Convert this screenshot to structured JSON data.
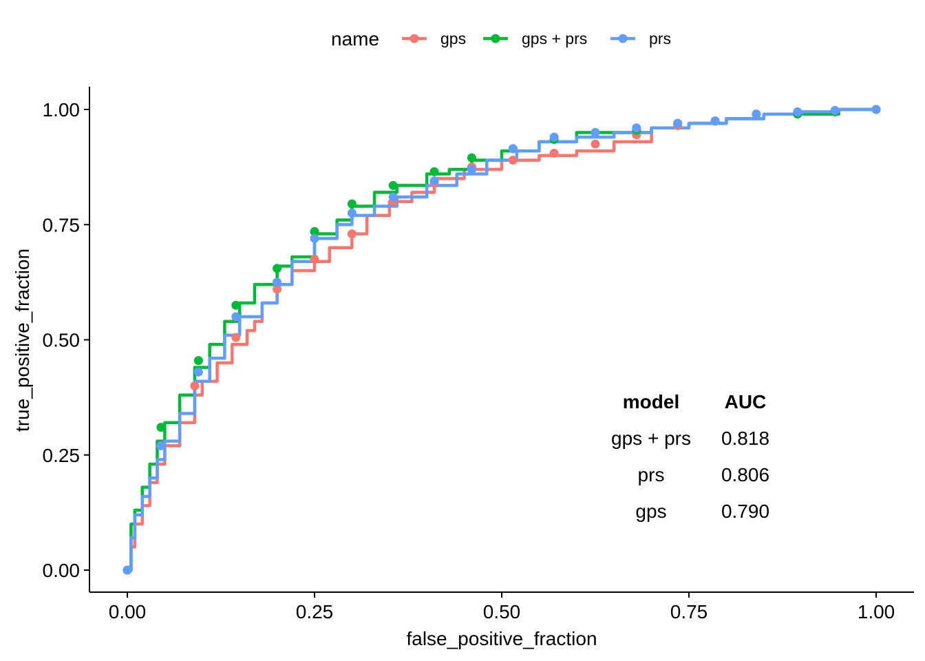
{
  "chart_data": {
    "type": "line",
    "xlabel": "false_positive_fraction",
    "ylabel": "true_positive_fraction",
    "xlim": [
      0,
      1
    ],
    "ylim": [
      0,
      1
    ],
    "x_ticks": [
      "0.00",
      "0.25",
      "0.50",
      "0.75",
      "1.00"
    ],
    "y_ticks": [
      "0.00",
      "0.25",
      "0.50",
      "0.75",
      "1.00"
    ],
    "grid": false,
    "legend": {
      "title": "name",
      "position": "top"
    },
    "series": [
      {
        "name": "gps",
        "color": "#F8766D",
        "line": [
          [
            0,
            0
          ],
          [
            0.005,
            0.05
          ],
          [
            0.01,
            0.1
          ],
          [
            0.02,
            0.14
          ],
          [
            0.03,
            0.19
          ],
          [
            0.04,
            0.23
          ],
          [
            0.05,
            0.27
          ],
          [
            0.07,
            0.32
          ],
          [
            0.09,
            0.38
          ],
          [
            0.1,
            0.41
          ],
          [
            0.12,
            0.45
          ],
          [
            0.14,
            0.49
          ],
          [
            0.16,
            0.52
          ],
          [
            0.17,
            0.54
          ],
          [
            0.18,
            0.58
          ],
          [
            0.2,
            0.62
          ],
          [
            0.22,
            0.65
          ],
          [
            0.25,
            0.67
          ],
          [
            0.27,
            0.7
          ],
          [
            0.3,
            0.73
          ],
          [
            0.32,
            0.77
          ],
          [
            0.35,
            0.8
          ],
          [
            0.38,
            0.82
          ],
          [
            0.41,
            0.85
          ],
          [
            0.45,
            0.87
          ],
          [
            0.5,
            0.89
          ],
          [
            0.55,
            0.9
          ],
          [
            0.6,
            0.91
          ],
          [
            0.65,
            0.93
          ],
          [
            0.7,
            0.96
          ],
          [
            0.75,
            0.97
          ],
          [
            0.8,
            0.98
          ],
          [
            0.85,
            0.99
          ],
          [
            0.9,
            0.99
          ],
          [
            0.95,
            1.0
          ],
          [
            1.0,
            1.0
          ]
        ],
        "points": [
          [
            0,
            0
          ],
          [
            0.045,
            0.27
          ],
          [
            0.09,
            0.4
          ],
          [
            0.145,
            0.505
          ],
          [
            0.2,
            0.61
          ],
          [
            0.25,
            0.675
          ],
          [
            0.3,
            0.73
          ],
          [
            0.355,
            0.8
          ],
          [
            0.41,
            0.84
          ],
          [
            0.46,
            0.875
          ],
          [
            0.515,
            0.89
          ],
          [
            0.57,
            0.905
          ],
          [
            0.625,
            0.925
          ],
          [
            0.68,
            0.945
          ],
          [
            0.735,
            0.965
          ],
          [
            0.785,
            0.975
          ],
          [
            0.84,
            0.99
          ],
          [
            0.895,
            0.99
          ],
          [
            0.945,
            0.995
          ],
          [
            1.0,
            1.0
          ]
        ]
      },
      {
        "name": "gps + prs",
        "color": "#00BA38",
        "line": [
          [
            0,
            0
          ],
          [
            0.005,
            0.1
          ],
          [
            0.01,
            0.13
          ],
          [
            0.02,
            0.18
          ],
          [
            0.03,
            0.23
          ],
          [
            0.04,
            0.28
          ],
          [
            0.05,
            0.32
          ],
          [
            0.07,
            0.38
          ],
          [
            0.09,
            0.44
          ],
          [
            0.11,
            0.49
          ],
          [
            0.13,
            0.54
          ],
          [
            0.15,
            0.58
          ],
          [
            0.17,
            0.62
          ],
          [
            0.2,
            0.66
          ],
          [
            0.22,
            0.68
          ],
          [
            0.25,
            0.73
          ],
          [
            0.28,
            0.76
          ],
          [
            0.3,
            0.79
          ],
          [
            0.33,
            0.82
          ],
          [
            0.36,
            0.835
          ],
          [
            0.4,
            0.86
          ],
          [
            0.43,
            0.87
          ],
          [
            0.46,
            0.89
          ],
          [
            0.5,
            0.91
          ],
          [
            0.55,
            0.93
          ],
          [
            0.6,
            0.95
          ],
          [
            0.65,
            0.95
          ],
          [
            0.7,
            0.96
          ],
          [
            0.75,
            0.97
          ],
          [
            0.8,
            0.98
          ],
          [
            0.85,
            0.99
          ],
          [
            0.9,
            0.99
          ],
          [
            0.95,
            1.0
          ],
          [
            1.0,
            1.0
          ]
        ],
        "points": [
          [
            0,
            0
          ],
          [
            0.045,
            0.31
          ],
          [
            0.095,
            0.455
          ],
          [
            0.145,
            0.575
          ],
          [
            0.2,
            0.655
          ],
          [
            0.25,
            0.735
          ],
          [
            0.3,
            0.795
          ],
          [
            0.355,
            0.835
          ],
          [
            0.41,
            0.865
          ],
          [
            0.46,
            0.895
          ],
          [
            0.515,
            0.915
          ],
          [
            0.57,
            0.935
          ],
          [
            0.625,
            0.95
          ],
          [
            0.68,
            0.955
          ],
          [
            0.735,
            0.97
          ],
          [
            0.785,
            0.975
          ],
          [
            0.84,
            0.99
          ],
          [
            0.895,
            0.99
          ],
          [
            0.945,
            0.995
          ],
          [
            1.0,
            1.0
          ]
        ]
      },
      {
        "name": "prs",
        "color": "#619CFF",
        "line": [
          [
            0,
            0
          ],
          [
            0.005,
            0.07
          ],
          [
            0.01,
            0.12
          ],
          [
            0.02,
            0.16
          ],
          [
            0.03,
            0.2
          ],
          [
            0.04,
            0.24
          ],
          [
            0.05,
            0.28
          ],
          [
            0.07,
            0.34
          ],
          [
            0.09,
            0.41
          ],
          [
            0.11,
            0.46
          ],
          [
            0.13,
            0.51
          ],
          [
            0.15,
            0.55
          ],
          [
            0.18,
            0.58
          ],
          [
            0.2,
            0.62
          ],
          [
            0.22,
            0.67
          ],
          [
            0.25,
            0.72
          ],
          [
            0.28,
            0.75
          ],
          [
            0.3,
            0.77
          ],
          [
            0.33,
            0.79
          ],
          [
            0.36,
            0.81
          ],
          [
            0.4,
            0.835
          ],
          [
            0.44,
            0.86
          ],
          [
            0.48,
            0.89
          ],
          [
            0.52,
            0.91
          ],
          [
            0.55,
            0.93
          ],
          [
            0.6,
            0.94
          ],
          [
            0.65,
            0.95
          ],
          [
            0.7,
            0.96
          ],
          [
            0.75,
            0.97
          ],
          [
            0.8,
            0.98
          ],
          [
            0.85,
            0.99
          ],
          [
            0.9,
            0.995
          ],
          [
            0.95,
            1.0
          ],
          [
            1.0,
            1.0
          ]
        ],
        "points": [
          [
            0,
            0
          ],
          [
            0.045,
            0.27
          ],
          [
            0.095,
            0.43
          ],
          [
            0.145,
            0.55
          ],
          [
            0.2,
            0.625
          ],
          [
            0.25,
            0.72
          ],
          [
            0.3,
            0.775
          ],
          [
            0.355,
            0.81
          ],
          [
            0.41,
            0.845
          ],
          [
            0.46,
            0.87
          ],
          [
            0.515,
            0.915
          ],
          [
            0.57,
            0.94
          ],
          [
            0.625,
            0.95
          ],
          [
            0.68,
            0.96
          ],
          [
            0.735,
            0.97
          ],
          [
            0.785,
            0.975
          ],
          [
            0.84,
            0.99
          ],
          [
            0.895,
            0.995
          ],
          [
            0.945,
            0.998
          ],
          [
            1.0,
            1.0
          ]
        ]
      }
    ],
    "annotation_table": {
      "headers": [
        "model",
        "AUC"
      ],
      "rows": [
        [
          "gps + prs",
          "0.818"
        ],
        [
          "prs",
          "0.806"
        ],
        [
          "gps",
          "0.790"
        ]
      ]
    }
  }
}
